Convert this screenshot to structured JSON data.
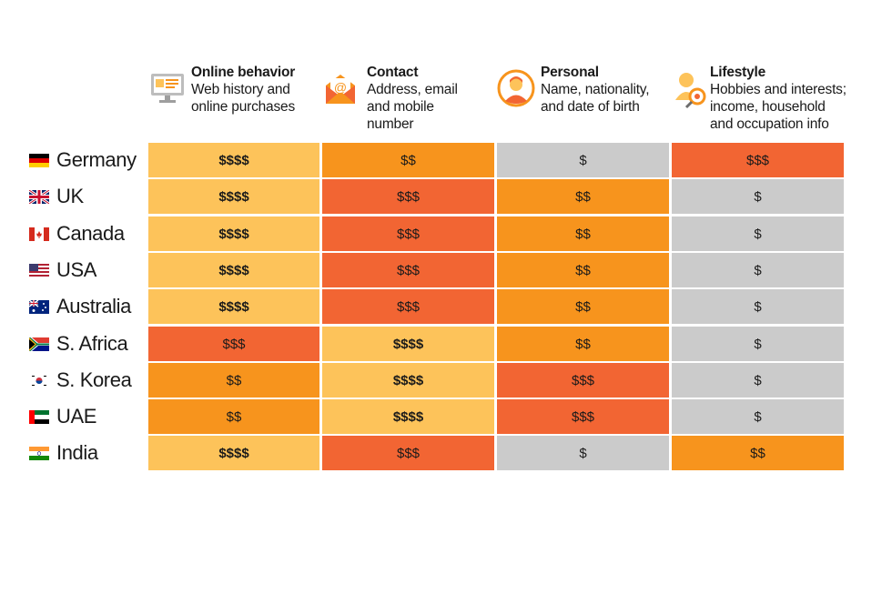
{
  "colors": {
    "$$$$": "#fdc35a",
    "$$$": "#f26533",
    "$$": "#f7941d",
    "$": "#cbcbcb"
  },
  "columns": [
    {
      "title": "Online behavior",
      "description": "Web history and\nonline purchases",
      "icon": "computer-monitor-icon"
    },
    {
      "title": "Contact",
      "description": "Address, email\nand mobile\nnumber",
      "icon": "email-envelope-icon"
    },
    {
      "title": "Personal",
      "description": "Name, nationality,\nand date of birth",
      "icon": "person-portrait-icon"
    },
    {
      "title": "Lifestyle",
      "description": "Hobbies and interests;\nincome, household\nand occupation info",
      "icon": "person-with-magnifier-icon"
    }
  ],
  "chart_data": {
    "type": "table",
    "columns": [
      "Online behavior",
      "Contact",
      "Personal",
      "Lifestyle"
    ],
    "rows": [
      {
        "country": "Germany",
        "flag": "germany-flag-icon",
        "values": [
          "$$$$",
          "$$",
          "$",
          "$$$"
        ]
      },
      {
        "country": "UK",
        "flag": "uk-flag-icon",
        "values": [
          "$$$$",
          "$$$",
          "$$",
          "$"
        ]
      },
      {
        "country": "Canada",
        "flag": "canada-flag-icon",
        "values": [
          "$$$$",
          "$$$",
          "$$",
          "$"
        ]
      },
      {
        "country": "USA",
        "flag": "usa-flag-icon",
        "values": [
          "$$$$",
          "$$$",
          "$$",
          "$"
        ]
      },
      {
        "country": "Australia",
        "flag": "australia-flag-icon",
        "values": [
          "$$$$",
          "$$$",
          "$$",
          "$"
        ]
      },
      {
        "country": "S. Africa",
        "flag": "south-africa-flag-icon",
        "values": [
          "$$$",
          "$$$$",
          "$$",
          "$"
        ]
      },
      {
        "country": "S. Korea",
        "flag": "south-korea-flag-icon",
        "values": [
          "$$",
          "$$$$",
          "$$$",
          "$"
        ]
      },
      {
        "country": "UAE",
        "flag": "uae-flag-icon",
        "values": [
          "$$",
          "$$$$",
          "$$$",
          "$"
        ]
      },
      {
        "country": "India",
        "flag": "india-flag-icon",
        "values": [
          "$$$$",
          "$$$",
          "$",
          "$$"
        ]
      }
    ]
  }
}
